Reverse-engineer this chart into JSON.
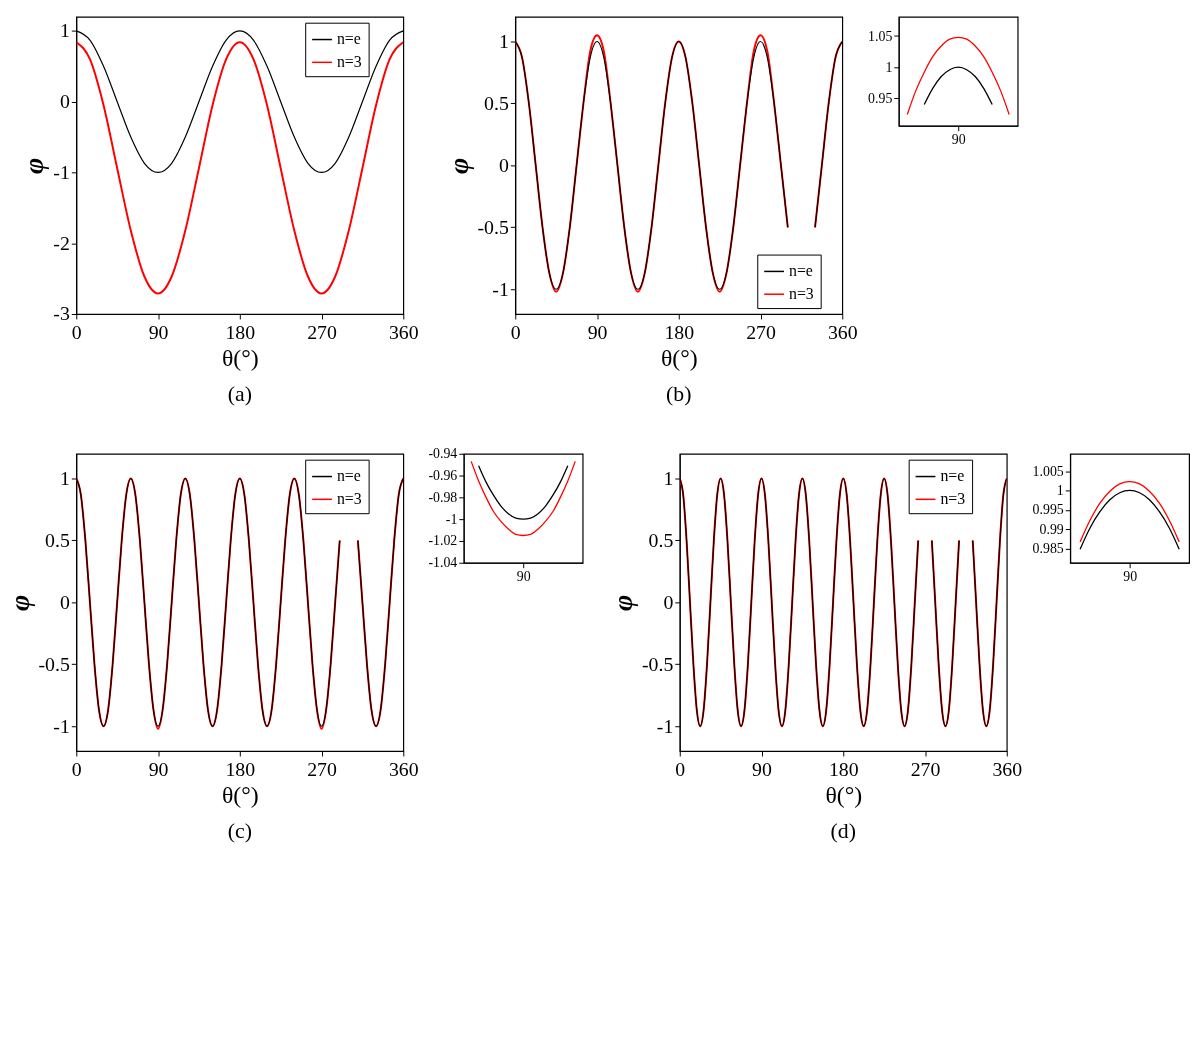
{
  "chart_data": [
    {
      "type": "line",
      "xlabel": "θ(°)",
      "ylabel": "φ",
      "annotations": [
        "(a)"
      ],
      "legend": "top right",
      "xlim": [
        0,
        360
      ],
      "xticks": [
        0,
        90,
        180,
        270,
        360
      ],
      "ylim": [
        -3,
        1.2
      ],
      "yticks": [
        -3,
        -2,
        -1,
        0,
        1
      ],
      "x": [
        0,
        15,
        30,
        45,
        60,
        75,
        90,
        105,
        120,
        135,
        150,
        165,
        180,
        195,
        210,
        225,
        240,
        255,
        270,
        285,
        300,
        315,
        330,
        345,
        360
      ],
      "series": [
        {
          "name": "n=e",
          "color": "#000000",
          "values": [
            1,
            0.87,
            0.5,
            0,
            -0.5,
            -0.87,
            -1,
            -0.87,
            -0.5,
            0,
            0.5,
            0.87,
            1,
            0.87,
            0.5,
            0,
            -0.5,
            -0.87,
            -1,
            -0.87,
            -0.5,
            0,
            0.5,
            0.87,
            1
          ]
        },
        {
          "name": "n=3",
          "color": "#ff0000",
          "values": [
            0.84,
            0.6,
            -0.05,
            -0.94,
            -1.82,
            -2.47,
            -2.71,
            -2.47,
            -1.82,
            -0.94,
            -0.05,
            0.6,
            0.84,
            0.6,
            -0.05,
            -0.94,
            -1.82,
            -2.47,
            -2.71,
            -2.47,
            -1.82,
            -0.94,
            -0.05,
            0.6,
            0.84
          ]
        }
      ]
    },
    {
      "type": "line",
      "xlabel": "θ(°)",
      "ylabel": "φ",
      "annotations": [
        "(b)"
      ],
      "legend": "bottom right",
      "xlim": [
        0,
        360
      ],
      "xticks": [
        0,
        90,
        180,
        270,
        360
      ],
      "ylim": [
        -1.2,
        1.2
      ],
      "yticks": [
        -1,
        -0.5,
        0,
        0.5,
        1
      ],
      "x": [
        0,
        7.5,
        15,
        22.5,
        30,
        37.5,
        45,
        52.5,
        60,
        67.5,
        75,
        82.5,
        90,
        97.5,
        105,
        112.5,
        120,
        127.5,
        135,
        142.5,
        150,
        157.5,
        165,
        172.5,
        180,
        187.5,
        195,
        202.5,
        210,
        217.5,
        225,
        232.5,
        240,
        247.5,
        255,
        262.5,
        270,
        277.5,
        285,
        292.5,
        300,
        307.5,
        315,
        322.5,
        330,
        337.5,
        345,
        352.5,
        360
      ],
      "series": [
        {
          "name": "n=e",
          "color": "#000000",
          "values": [
            1,
            0.87,
            0.5,
            0,
            -0.5,
            -0.87,
            -1,
            -0.87,
            -0.5,
            0,
            0.5,
            0.87,
            1,
            0.87,
            0.5,
            0,
            -0.5,
            -0.87,
            -1,
            -0.87,
            -0.5,
            0,
            0.5,
            0.87,
            1,
            0.87,
            0.5,
            0,
            -0.5,
            -0.87,
            -1,
            -0.87,
            -0.5,
            0,
            0.5,
            0.87,
            1,
            0.87,
            0.5,
            0,
            -0.5,
            null,
            null,
            null,
            -0.5,
            0,
            0.5,
            0.87,
            1
          ]
        },
        {
          "name": "n=3",
          "color": "#ff0000",
          "values": [
            1,
            0.87,
            0.5,
            0,
            -0.5,
            -0.87,
            -1.02,
            -0.87,
            -0.5,
            0,
            0.5,
            0.92,
            1.05,
            0.92,
            0.5,
            0,
            -0.5,
            -0.87,
            -1.02,
            -0.87,
            -0.5,
            0,
            0.5,
            0.87,
            1,
            0.87,
            0.5,
            0,
            -0.5,
            -0.87,
            -1.02,
            -0.87,
            -0.5,
            0,
            0.5,
            0.92,
            1.05,
            0.92,
            0.5,
            0,
            -0.5,
            null,
            null,
            null,
            -0.5,
            0,
            0.5,
            0.87,
            1
          ]
        }
      ]
    },
    {
      "type": "line",
      "categories": [
        null,
        null,
        null,
        null,
        null,
        null,
        "90",
        null,
        null,
        null,
        null,
        null,
        null
      ],
      "ylim": [
        0.906,
        1.081
      ],
      "yticks": [
        0.95,
        1,
        1.05
      ],
      "series": [
        {
          "color": "#000000",
          "values": [
            null,
            null,
            0.94,
            0.966,
            0.985,
            0.996,
            1,
            0.996,
            0.985,
            0.966,
            0.94,
            null,
            null
          ]
        },
        {
          "color": "#ff0000",
          "values": [
            0.924,
            0.962,
            0.992,
            1.017,
            1.034,
            1.045,
            1.048,
            1.045,
            1.034,
            1.017,
            0.992,
            0.962,
            0.924
          ]
        }
      ]
    },
    {
      "type": "line",
      "xlabel": "θ(°)",
      "ylabel": "φ",
      "annotations": [
        "(c)"
      ],
      "legend": "top right",
      "xlim": [
        0,
        360
      ],
      "xticks": [
        0,
        90,
        180,
        270,
        360
      ],
      "ylim": [
        -1.2,
        1.2
      ],
      "yticks": [
        -1,
        -0.5,
        0,
        0.5,
        1
      ],
      "x": [
        0,
        5,
        10,
        15,
        20,
        25,
        30,
        35,
        40,
        45,
        50,
        55,
        60,
        65,
        70,
        75,
        80,
        85,
        90,
        95,
        100,
        105,
        110,
        115,
        120,
        125,
        130,
        135,
        140,
        145,
        150,
        155,
        160,
        165,
        170,
        175,
        180,
        185,
        190,
        195,
        200,
        205,
        210,
        215,
        220,
        225,
        230,
        235,
        240,
        245,
        250,
        255,
        260,
        265,
        270,
        275,
        280,
        285,
        290,
        295,
        300,
        305,
        310,
        315,
        320,
        325,
        330,
        335,
        340,
        345,
        350,
        355,
        360
      ],
      "series": [
        {
          "name": "n=e",
          "color": "#000000",
          "values": [
            1,
            0.87,
            0.5,
            0,
            -0.5,
            -0.87,
            -1,
            -0.87,
            -0.5,
            0,
            0.5,
            0.87,
            1,
            0.87,
            0.5,
            0,
            -0.5,
            -0.87,
            -1,
            -0.87,
            -0.5,
            0,
            0.5,
            0.87,
            1,
            0.87,
            0.5,
            0,
            -0.5,
            -0.87,
            -1,
            -0.87,
            -0.5,
            0,
            0.5,
            0.87,
            1,
            0.87,
            0.5,
            0,
            -0.5,
            -0.87,
            -1,
            -0.87,
            -0.5,
            0,
            0.5,
            0.87,
            1,
            0.87,
            0.5,
            0,
            -0.5,
            -0.87,
            -1,
            -0.87,
            -0.5,
            0,
            0.5,
            null,
            null,
            null,
            0.5,
            0,
            -0.5,
            -0.87,
            -1,
            -0.87,
            -0.5,
            0,
            0.5,
            0.87,
            1
          ]
        },
        {
          "name": "n=3",
          "color": "#ff0000",
          "values": [
            1,
            0.87,
            0.5,
            0,
            -0.5,
            -0.87,
            -1,
            -0.87,
            -0.5,
            0,
            0.5,
            0.87,
            1,
            0.87,
            0.5,
            0,
            -0.5,
            -0.87,
            -1.02,
            -0.87,
            -0.5,
            0,
            0.5,
            0.87,
            1,
            0.87,
            0.5,
            0,
            -0.5,
            -0.87,
            -1,
            -0.87,
            -0.5,
            0,
            0.5,
            0.87,
            1,
            0.87,
            0.5,
            0,
            -0.5,
            -0.87,
            -1,
            -0.87,
            -0.5,
            0,
            0.5,
            0.87,
            1,
            0.87,
            0.5,
            0,
            -0.5,
            -0.87,
            -1.02,
            -0.87,
            -0.5,
            0,
            0.5,
            null,
            null,
            null,
            0.5,
            0,
            -0.5,
            -0.87,
            -1,
            -0.87,
            -0.5,
            0,
            0.5,
            0.87,
            1
          ]
        }
      ]
    },
    {
      "type": "line",
      "categories": [
        null,
        null,
        null,
        null,
        null,
        null,
        null,
        "90",
        null,
        null,
        null,
        null,
        null,
        null,
        null
      ],
      "ylim": [
        -1.04,
        -0.94
      ],
      "yticks": [
        -1.04,
        -1.02,
        -1,
        -0.98,
        -0.96,
        -0.94
      ],
      "series": [
        {
          "color": "#000000",
          "values": [
            null,
            -0.951,
            -0.966,
            -0.978,
            -0.988,
            -0.995,
            -0.999,
            -1,
            -0.999,
            -0.995,
            -0.988,
            -0.978,
            -0.966,
            -0.951,
            null
          ]
        },
        {
          "color": "#ff0000",
          "values": [
            -0.947,
            -0.965,
            -0.98,
            -0.993,
            -1.002,
            -1.009,
            -1.014,
            -1.015,
            -1.014,
            -1.009,
            -1.002,
            -0.993,
            -0.98,
            -0.965,
            -0.947
          ]
        }
      ]
    },
    {
      "type": "line",
      "xlabel": "θ(°)",
      "ylabel": "φ",
      "annotations": [
        "(d)"
      ],
      "legend": "top right",
      "xlim": [
        0,
        360
      ],
      "xticks": [
        0,
        90,
        180,
        270,
        360
      ],
      "ylim": [
        -1.2,
        1.2
      ],
      "yticks": [
        -1,
        -0.5,
        0,
        0.5,
        1
      ],
      "x": [
        0,
        3.75,
        7.5,
        11.25,
        15,
        18.75,
        22.5,
        26.25,
        30,
        33.75,
        37.5,
        41.25,
        45,
        48.75,
        52.5,
        56.25,
        60,
        63.75,
        67.5,
        71.25,
        75,
        78.75,
        82.5,
        86.25,
        90,
        93.75,
        97.5,
        101.25,
        105,
        108.75,
        112.5,
        116.25,
        120,
        123.75,
        127.5,
        131.25,
        135,
        138.75,
        142.5,
        146.25,
        150,
        153.75,
        157.5,
        161.25,
        165,
        168.75,
        172.5,
        176.25,
        180,
        183.75,
        187.5,
        191.25,
        195,
        198.75,
        202.5,
        206.25,
        210,
        213.75,
        217.5,
        221.25,
        225,
        228.75,
        232.5,
        236.25,
        240,
        243.75,
        247.5,
        251.25,
        255,
        258.75,
        262.5,
        266.25,
        270,
        273.75,
        277.5,
        281.25,
        285,
        288.75,
        292.5,
        296.25,
        300,
        303.75,
        307.5,
        311.25,
        315,
        318.75,
        322.5,
        326.25,
        330,
        333.75,
        337.5,
        341.25,
        345,
        348.75,
        352.5,
        356.25,
        360
      ],
      "series": [
        {
          "name": "n=e",
          "color": "#000000",
          "values": [
            1,
            0.87,
            0.5,
            0,
            -0.5,
            -0.87,
            -1,
            -0.87,
            -0.5,
            0,
            0.5,
            0.87,
            1,
            0.87,
            0.5,
            0,
            -0.5,
            -0.87,
            -1,
            -0.87,
            -0.5,
            0,
            0.5,
            0.87,
            1,
            0.87,
            0.5,
            0,
            -0.5,
            -0.87,
            -1,
            -0.87,
            -0.5,
            0,
            0.5,
            0.87,
            1,
            0.87,
            0.5,
            0,
            -0.5,
            -0.87,
            -1,
            -0.87,
            -0.5,
            0,
            0.5,
            0.87,
            1,
            0.87,
            0.5,
            0,
            -0.5,
            -0.87,
            -1,
            -0.87,
            -0.5,
            0,
            0.5,
            0.87,
            1,
            0.87,
            0.5,
            0,
            -0.5,
            -0.87,
            -1,
            -0.87,
            -0.5,
            0,
            0.5,
            null,
            null,
            null,
            0.5,
            0,
            -0.5,
            -0.87,
            -1,
            -0.87,
            -0.5,
            0,
            0.5,
            null,
            null,
            null,
            0.5,
            0,
            -0.5,
            -0.87,
            -1,
            -0.87,
            -0.5,
            0,
            0.5,
            0.87,
            1
          ]
        },
        {
          "name": "n=3",
          "color": "#ff0000",
          "values": [
            1,
            0.87,
            0.5,
            0,
            -0.5,
            -0.87,
            -1,
            -0.87,
            -0.5,
            0,
            0.5,
            0.87,
            1,
            0.87,
            0.5,
            0,
            -0.5,
            -0.87,
            -1,
            -0.87,
            -0.5,
            0,
            0.5,
            0.87,
            1,
            0.87,
            0.5,
            0,
            -0.5,
            -0.87,
            -1,
            -0.87,
            -0.5,
            0,
            0.5,
            0.87,
            1,
            0.87,
            0.5,
            0,
            -0.5,
            -0.87,
            -1,
            -0.87,
            -0.5,
            0,
            0.5,
            0.87,
            1,
            0.87,
            0.5,
            0,
            -0.5,
            -0.87,
            -1,
            -0.87,
            -0.5,
            0,
            0.5,
            0.87,
            1,
            0.87,
            0.5,
            0,
            -0.5,
            -0.87,
            -1,
            -0.87,
            -0.5,
            0,
            0.5,
            null,
            null,
            null,
            0.5,
            0,
            -0.5,
            -0.87,
            -1,
            -0.87,
            -0.5,
            0,
            0.5,
            null,
            null,
            null,
            0.5,
            0,
            -0.5,
            -0.87,
            -1,
            -0.87,
            -0.5,
            0,
            0.5,
            0.87,
            1
          ]
        }
      ]
    },
    {
      "type": "line",
      "categories": [
        null,
        null,
        null,
        null,
        null,
        "90",
        null,
        null,
        null,
        null,
        null
      ],
      "ylim": [
        0.9813,
        1.0095
      ],
      "yticks": [
        0.985,
        0.99,
        0.995,
        1,
        1.005
      ],
      "series": [
        {
          "color": "#000000",
          "values": [
            0.9848,
            0.9903,
            0.9945,
            0.9976,
            0.9994,
            1,
            0.9994,
            0.9976,
            0.9945,
            0.9903,
            0.9848
          ]
        },
        {
          "color": "#ff0000",
          "values": [
            0.9867,
            0.9923,
            0.9967,
            0.9998,
            1.0017,
            1.0023,
            1.0017,
            0.9998,
            0.9967,
            0.9923,
            0.9867
          ]
        }
      ]
    }
  ]
}
